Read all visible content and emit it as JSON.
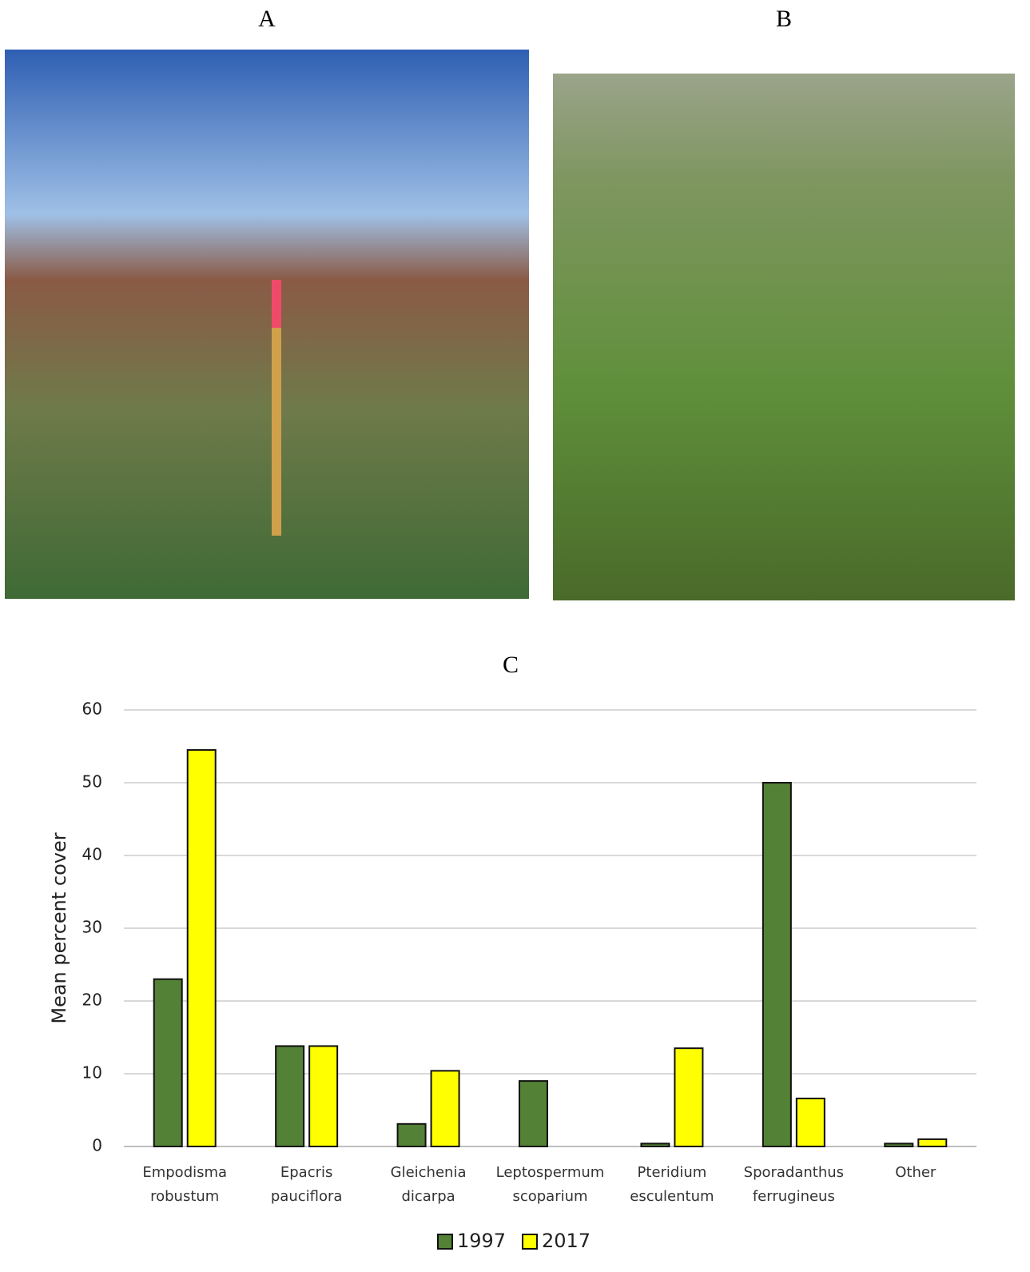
{
  "panels": {
    "a": "A",
    "b": "B"
  },
  "chart_data": {
    "type": "bar",
    "title": "C",
    "y_label": "Mean percent cover",
    "categories": [
      [
        "Empodisma",
        "robustum"
      ],
      [
        "Epacris",
        "pauciflora"
      ],
      [
        "Gleichenia",
        "dicarpa"
      ],
      [
        "Leptospermum",
        "scoparium"
      ],
      [
        "Pteridium",
        "esculentum"
      ],
      [
        "Sporadanthus",
        "ferrugineus"
      ],
      [
        "Other"
      ]
    ],
    "series": [
      {
        "name": "1997",
        "color": "#538135",
        "values": [
          23,
          13.8,
          3.1,
          9,
          0.4,
          50,
          0.4
        ]
      },
      {
        "name": "2017",
        "color": "#ffff00",
        "values": [
          54.5,
          13.8,
          10.4,
          0,
          13.5,
          6.6,
          1.0
        ]
      }
    ],
    "ylim": [
      0,
      60
    ],
    "yticks": [
      0,
      10,
      20,
      30,
      40,
      50,
      60
    ],
    "grid": true,
    "legend": "bottom"
  }
}
